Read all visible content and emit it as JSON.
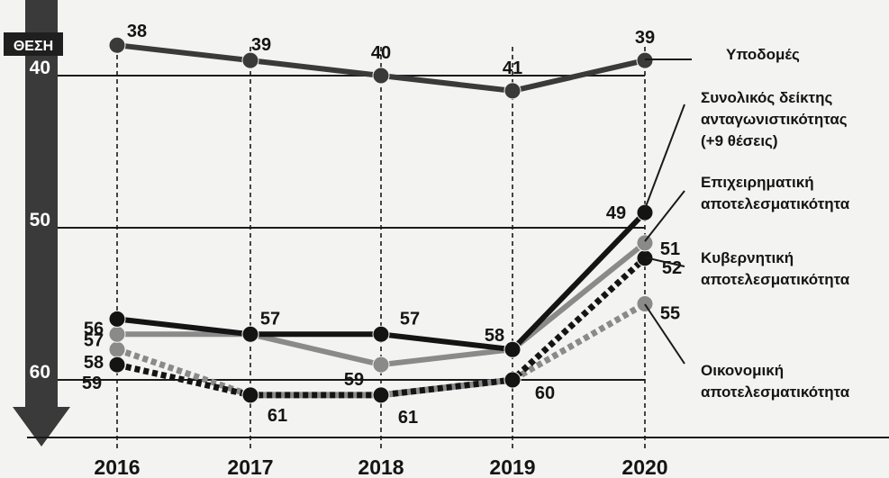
{
  "chart_data": {
    "type": "line",
    "ylabel": "ΘΕΣΗ",
    "y_inverted": true,
    "ylim": [
      35,
      62
    ],
    "y_ticks": [
      "40",
      "50",
      "60"
    ],
    "x": [
      "2016",
      "2017",
      "2018",
      "2019",
      "2020"
    ],
    "series": [
      {
        "name": "Υποδομές",
        "values": [
          38,
          39,
          40,
          41,
          39
        ],
        "labels": [
          "38",
          "39",
          "40",
          "41",
          "39"
        ],
        "color": "#3a3a3a",
        "style": "solid"
      },
      {
        "name": "Συνολικός δείκτης ανταγωνιστικότητας (+9 θέσεις)",
        "values": [
          56,
          57,
          57,
          58,
          49
        ],
        "labels": [
          "56",
          "57",
          "57",
          "58",
          "49"
        ],
        "color": "#141414",
        "style": "solid"
      },
      {
        "name": "Επιχειρηματική αποτελεσματικότητα",
        "values": [
          57,
          57,
          59,
          58,
          51
        ],
        "labels": [
          "57",
          "",
          "59",
          "",
          "51"
        ],
        "color": "#8a8a8a",
        "style": "solid"
      },
      {
        "name": "Κυβερνητική αποτελεσματικότητα",
        "values": [
          59,
          61,
          61,
          60,
          52
        ],
        "labels": [
          "59",
          "61",
          "61",
          "60",
          "52"
        ],
        "color": "#141414",
        "style": "dotted"
      },
      {
        "name": "Οικονομική αποτελεσματικότητα",
        "values": [
          58,
          61,
          61,
          60,
          55
        ],
        "labels": [
          "58",
          "",
          "",
          "",
          "55"
        ],
        "color": "#8a8a8a",
        "style": "dotted"
      }
    ],
    "legend_lines": [
      [
        "Υποδομές"
      ],
      [
        "Συνολικός δείκτης",
        "ανταγωνιστικότητας",
        "(+9 θέσεις)"
      ],
      [
        "Επιχειρηματική",
        "αποτελεσματικότητα"
      ],
      [
        "Κυβερνητική",
        "αποτελεσματικότητα"
      ],
      [
        "Οικονομική",
        "αποτελεσματικότητα"
      ]
    ]
  }
}
